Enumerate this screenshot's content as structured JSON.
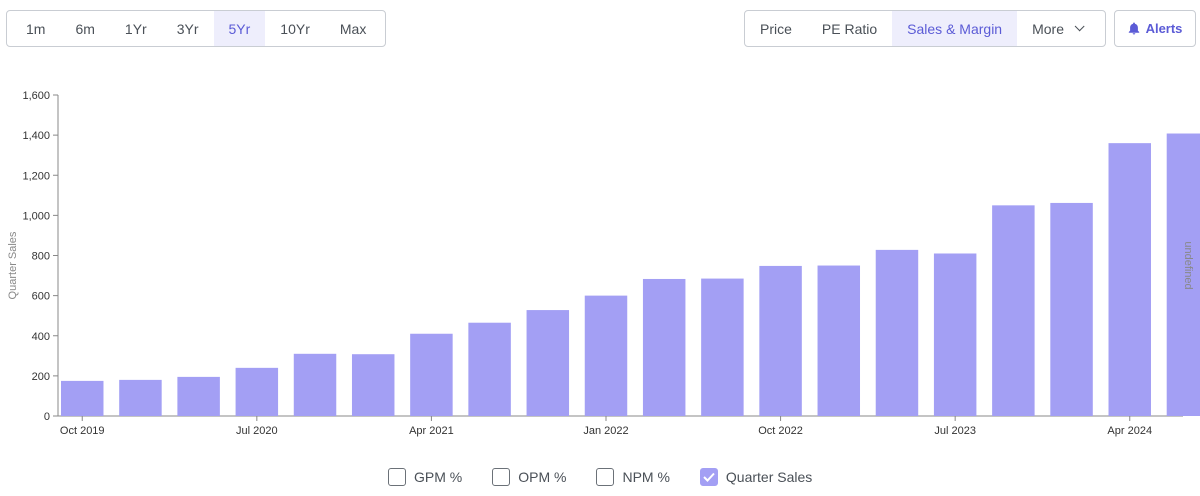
{
  "range_buttons": [
    {
      "label": "1m",
      "active": false
    },
    {
      "label": "6m",
      "active": false
    },
    {
      "label": "1Yr",
      "active": false
    },
    {
      "label": "3Yr",
      "active": false
    },
    {
      "label": "5Yr",
      "active": true
    },
    {
      "label": "10Yr",
      "active": false
    },
    {
      "label": "Max",
      "active": false
    }
  ],
  "metric_buttons": {
    "price": "Price",
    "pe_ratio": "PE Ratio",
    "sales_margin": "Sales & Margin",
    "more": "More"
  },
  "alerts_label": "Alerts",
  "colors": {
    "bar": "#a39ff4",
    "accent": "#5b5bd6",
    "active_bg": "#eeeefc"
  },
  "legend": [
    {
      "label": "GPM %",
      "checked": false
    },
    {
      "label": "OPM %",
      "checked": false
    },
    {
      "label": "NPM %",
      "checked": false
    },
    {
      "label": "Quarter Sales",
      "checked": true
    }
  ],
  "chart_data": {
    "type": "bar",
    "title": "",
    "ylabel": "Quarter Sales",
    "y2label": "undefined",
    "ylim": [
      0,
      1600
    ],
    "yticks": [
      0,
      200,
      400,
      600,
      800,
      1000,
      1200,
      1400,
      1600
    ],
    "ytick_labels": [
      "0",
      "200",
      "400",
      "600",
      "800",
      "1,000",
      "1,200",
      "1,400",
      "1,600"
    ],
    "x_tick_labels": [
      {
        "label": "Oct 2019",
        "index": 0
      },
      {
        "label": "Jul 2020",
        "index": 3
      },
      {
        "label": "Apr 2021",
        "index": 6
      },
      {
        "label": "Jan 2022",
        "index": 9
      },
      {
        "label": "Oct 2022",
        "index": 12
      },
      {
        "label": "Jul 2023",
        "index": 15
      },
      {
        "label": "Apr 2024",
        "index": 18
      }
    ],
    "categories": [
      "Oct 2019",
      "Jan 2020",
      "Apr 2020",
      "Jul 2020",
      "Oct 2020",
      "Jan 2021",
      "Apr 2021",
      "Jul 2021",
      "Oct 2021",
      "Jan 2022",
      "Apr 2022",
      "Jul 2022",
      "Oct 2022",
      "Jan 2023",
      "Apr 2023",
      "Jul 2023",
      "Oct 2023",
      "Jan 2024",
      "Apr 2024",
      "Jul 2024"
    ],
    "values": [
      175,
      180,
      195,
      240,
      310,
      308,
      410,
      465,
      528,
      600,
      683,
      685,
      748,
      750,
      828,
      810,
      1050,
      1062,
      1360,
      1408
    ]
  }
}
